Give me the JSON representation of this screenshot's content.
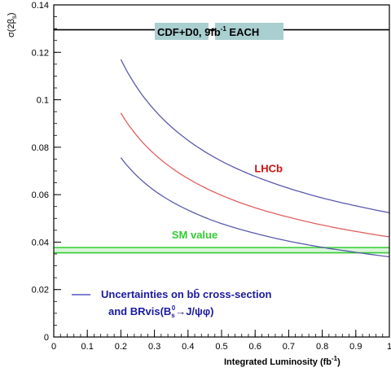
{
  "chart_data": {
    "type": "line",
    "xlabel": "Integrated Luminosity (fb",
    "xlabel_sup": "-1",
    "xlabel_end": ")",
    "ylabel": "σ(2β",
    "ylabel_sub": "s",
    "ylabel_end": ")",
    "xlim": [
      0,
      1.0
    ],
    "ylim": [
      0,
      0.14
    ],
    "x_ticks": [
      {
        "v": 0,
        "label": "0"
      },
      {
        "v": 0.1,
        "label": "0.1"
      },
      {
        "v": 0.2,
        "label": "0.2"
      },
      {
        "v": 0.3,
        "label": "0.3"
      },
      {
        "v": 0.4,
        "label": "0.4"
      },
      {
        "v": 0.5,
        "label": "0.5"
      },
      {
        "v": 0.6,
        "label": "0.6"
      },
      {
        "v": 0.7,
        "label": "0.7"
      },
      {
        "v": 0.8,
        "label": "0.8"
      },
      {
        "v": 0.9,
        "label": "0.9"
      },
      {
        "v": 1.0,
        "label": "1"
      }
    ],
    "y_ticks": [
      {
        "v": 0,
        "label": "0"
      },
      {
        "v": 0.02,
        "label": "0.02"
      },
      {
        "v": 0.04,
        "label": "0.04"
      },
      {
        "v": 0.06,
        "label": "0.06"
      },
      {
        "v": 0.08,
        "label": "0.08"
      },
      {
        "v": 0.1,
        "label": "0.1"
      },
      {
        "v": 0.12,
        "label": "0.12"
      },
      {
        "v": 0.14,
        "label": "0.14"
      }
    ],
    "band": {
      "y_bottom": 0.1295,
      "label_parts": [
        "CDF+D0, 9fb",
        "-1",
        " EACH"
      ],
      "fill": "#a9cfd0"
    },
    "series": [
      {
        "role": "upper",
        "color": "#5a5aaa",
        "x": [
          0.2,
          0.3,
          0.4,
          0.5,
          0.6,
          0.7,
          0.8,
          0.9,
          1.0
        ],
        "y": [
          0.117,
          0.0957,
          0.0829,
          0.0741,
          0.0677,
          0.0627,
          0.0586,
          0.0553,
          0.0524
        ]
      },
      {
        "role": "central",
        "color": "#e06060",
        "x": [
          0.2,
          0.3,
          0.4,
          0.5,
          0.6,
          0.7,
          0.8,
          0.9,
          1.0
        ],
        "y": [
          0.0944,
          0.0771,
          0.0668,
          0.0597,
          0.0545,
          0.0505,
          0.0472,
          0.0445,
          0.0422
        ]
      },
      {
        "role": "lower",
        "color": "#5a5aaa",
        "x": [
          0.2,
          0.3,
          0.4,
          0.5,
          0.6,
          0.7,
          0.8,
          0.9,
          1.0
        ],
        "y": [
          0.0756,
          0.0617,
          0.0535,
          0.0478,
          0.0437,
          0.0404,
          0.0378,
          0.0357,
          0.0338
        ]
      }
    ],
    "sm_band": {
      "y_low": 0.0355,
      "y_high": 0.0377,
      "color": "#33cc33",
      "label": "SM value"
    },
    "annotations": [
      {
        "text": "LHCb",
        "x": 0.64,
        "y": 0.0695,
        "color": "#d01010"
      },
      {
        "text": "SM value",
        "x": 0.42,
        "y": 0.0415,
        "color": "#33cc33"
      }
    ],
    "legend": {
      "line_color": "#3333bb",
      "line1": "Uncertainties on bb",
      "line1_mark": "̄",
      "line1_end": " cross-section",
      "line2_pre": "and BRvis(B",
      "line2_sub": "s",
      "line2_sup": "0",
      "line2_end": "→J/ψφ)",
      "text_color": "#1a1aa0"
    }
  }
}
